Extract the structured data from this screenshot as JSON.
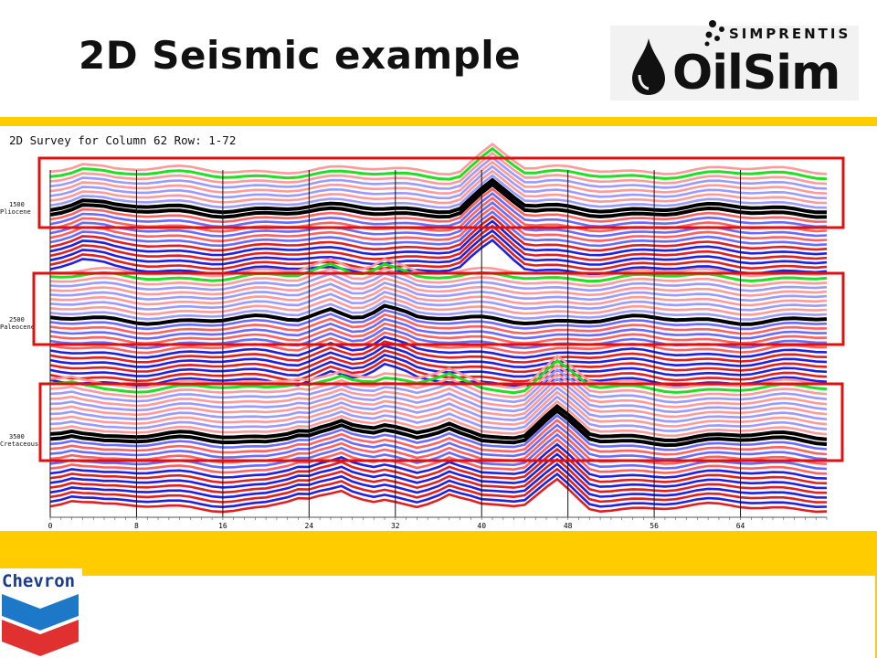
{
  "slide": {
    "title": "2D Seismic example"
  },
  "logos": {
    "simprentis": "SIMPRENTIS",
    "oilsim": "OilSim",
    "chevron": "Chevron"
  },
  "survey": {
    "title": "2D Survey for Column 62 Row: 1-72",
    "horizons": [
      {
        "depth": "1500",
        "name": "Pliocene"
      },
      {
        "depth": "2500",
        "name": "Paleocene"
      },
      {
        "depth": "3500",
        "name": "Cretaceous"
      }
    ],
    "x_ticks": [
      "0",
      "8",
      "16",
      "24",
      "32",
      "40",
      "48",
      "56",
      "64"
    ]
  },
  "colors": {
    "accent": "#ffcc00",
    "highlight": "#e01010",
    "trace_blue": "#2020e0",
    "trace_red": "#e02020",
    "horizon": "#000000",
    "green": "#20e020"
  }
}
